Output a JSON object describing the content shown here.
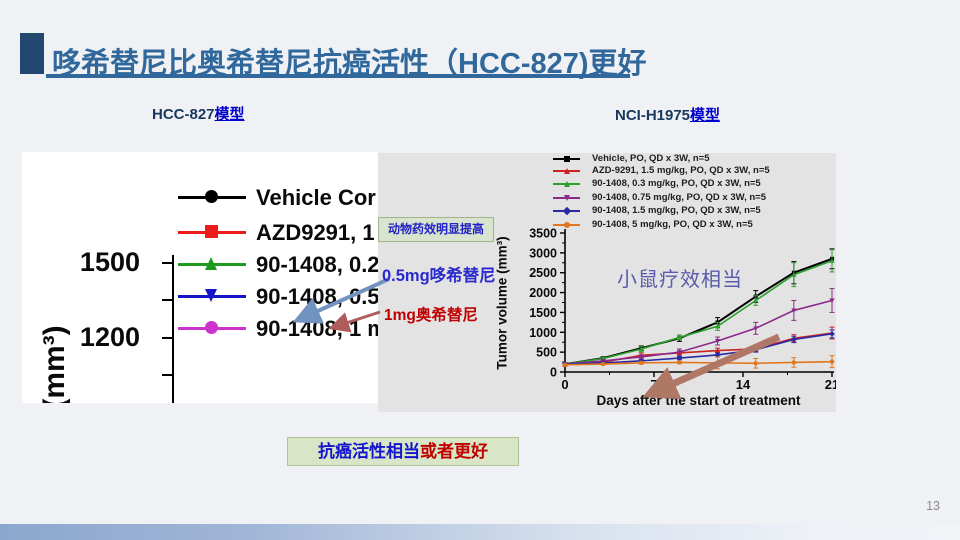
{
  "slide": {
    "title": "哆希替尼比奥希替尼抗癌活性（HCC-827)更好",
    "page_number": "13"
  },
  "colors": {
    "title": "#31689B",
    "title_square": "#24476F",
    "model_prefix": "#17375E",
    "model_suffix": "#0000CC",
    "annotation_blue": "#2A2ACD",
    "annotation_red": "#C00000",
    "mouse_note": "#5B5BAB",
    "note_box_bg": "#D8E4CE",
    "bottom_box_bg": "#D8E5C6"
  },
  "left_panel": {
    "label_prefix": "HCC-827",
    "label_suffix": "模型"
  },
  "right_panel": {
    "label_prefix": "NCI-H1975",
    "label_suffix": "模型"
  },
  "annotations": {
    "efficacy_box": "动物药效明显提高",
    "dox_label": "0.5mg哆希替尼",
    "osi_label": "1mg奥希替尼",
    "mouse_label": "小鼠疗效相当",
    "bottom_blue": "抗癌活性相当",
    "bottom_red": "或者更好"
  },
  "chart_data": [
    {
      "id": "hcc827",
      "type": "line",
      "title": "HCC-827模型",
      "ylabel": "(mm³)",
      "visible_yticks": [
        "1500",
        "1200"
      ],
      "legend": [
        {
          "label": "Vehicle Cor",
          "color": "#000000",
          "marker": "circle"
        },
        {
          "label": "AZD9291, 1",
          "color": "#EC1C1C",
          "marker": "square"
        },
        {
          "label": "90-1408, 0.2",
          "color": "#1E9B1E",
          "marker": "triangle-up"
        },
        {
          "label": "90-1408, 0.5",
          "color": "#1515C8",
          "marker": "triangle-down"
        },
        {
          "label": "90-1408, 1 m",
          "color": "#CC33CC",
          "marker": "circle"
        }
      ]
    },
    {
      "id": "nci_h1975",
      "type": "line",
      "title": "NCI-H1975模型",
      "xlabel": "Days after the start of treatment",
      "ylabel": "Tumor volume (mm³)",
      "xlim": [
        0,
        21
      ],
      "ylim": [
        0,
        3500
      ],
      "xticks": [
        0,
        7,
        14,
        21
      ],
      "yticks": [
        0,
        500,
        1000,
        1500,
        2000,
        2500,
        3000,
        3500
      ],
      "x": [
        0,
        3,
        6,
        9,
        12,
        15,
        18,
        21
      ],
      "series": [
        {
          "name": "Vehicle, PO, QD x 3W, n=5",
          "color": "#000000",
          "marker": "square",
          "values": [
            200,
            350,
            600,
            850,
            1250,
            1900,
            2500,
            2850
          ],
          "err": [
            30,
            40,
            60,
            80,
            120,
            150,
            280,
            250
          ]
        },
        {
          "name": "AZD-9291, 1.5 mg/kg, PO, QD x 3W, n=5",
          "color": "#CC2222",
          "marker": "triangle-up",
          "values": [
            180,
            250,
            420,
            480,
            540,
            580,
            850,
            980
          ],
          "err": [
            20,
            30,
            60,
            50,
            60,
            60,
            90,
            150
          ]
        },
        {
          "name": "90-1408, 0.3 mg/kg, PO, QD x 3W, n=5",
          "color": "#2CA02C",
          "marker": "triangle-up",
          "values": [
            200,
            340,
            580,
            870,
            1150,
            1800,
            2450,
            2800
          ],
          "err": [
            25,
            40,
            70,
            60,
            100,
            120,
            300,
            280
          ]
        },
        {
          "name": "90-1408, 0.75 mg/kg, PO, QD x 3W, n=5",
          "color": "#8B2A8B",
          "marker": "triangle-down",
          "values": [
            200,
            280,
            380,
            500,
            780,
            1100,
            1550,
            1800
          ],
          "err": [
            20,
            30,
            50,
            80,
            100,
            150,
            250,
            300
          ]
        },
        {
          "name": "90-1408, 1.5 mg/kg, PO, QD x 3W, n=5",
          "color": "#2929A3",
          "marker": "diamond",
          "values": [
            200,
            230,
            280,
            350,
            430,
            560,
            820,
            960
          ],
          "err": [
            15,
            20,
            30,
            40,
            50,
            60,
            80,
            100
          ]
        },
        {
          "name": "90-1408, 5 mg/kg, PO, QD x 3W, n=5",
          "color": "#E2751D",
          "marker": "circle",
          "values": [
            180,
            200,
            230,
            240,
            230,
            220,
            240,
            260
          ],
          "err": [
            15,
            20,
            30,
            30,
            150,
            120,
            120,
            150
          ]
        }
      ],
      "legend_position": "top"
    }
  ]
}
